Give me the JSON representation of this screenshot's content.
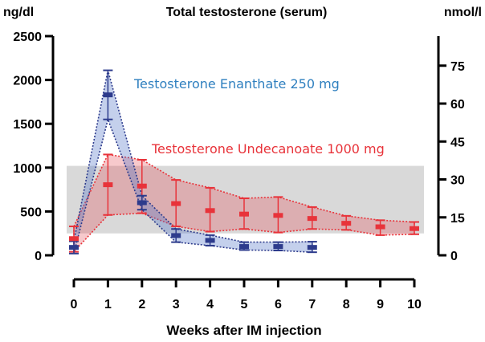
{
  "chart_data": {
    "type": "line",
    "title": "Total testosterone (serum)",
    "xlabel": "Weeks after IM injection",
    "ylabel_left": "ng/dl",
    "ylabel_right": "nmol/l",
    "xlim": [
      0,
      10
    ],
    "ylim": [
      0,
      2500
    ],
    "x_ticks": [
      0,
      1,
      2,
      3,
      4,
      5,
      6,
      7,
      8,
      9,
      10
    ],
    "y_ticks_left": [
      0,
      500,
      1000,
      1500,
      2000,
      2500
    ],
    "y_ticks_right": [
      0,
      15,
      30,
      45,
      60,
      75
    ],
    "nmol_per_ngdl": 0.03467,
    "reference_range": {
      "low": 250,
      "high": 1020,
      "color": "#d9d9d9"
    },
    "series": [
      {
        "name": "Testosterone Undecanoate 1000 mg",
        "color": "#e8333a",
        "fill": "rgba(230, 75, 85, 0.30)",
        "x": [
          0,
          1,
          2,
          3,
          4,
          5,
          6,
          7,
          8,
          9,
          10
        ],
        "y": [
          190,
          805,
          790,
          590,
          510,
          470,
          455,
          420,
          365,
          325,
          305
        ],
        "lower": [
          40,
          460,
          480,
          330,
          270,
          300,
          260,
          300,
          290,
          230,
          240
        ],
        "upper": [
          330,
          1150,
          1090,
          860,
          770,
          650,
          665,
          550,
          450,
          400,
          380
        ]
      },
      {
        "name": "Testosterone Enanthate 250 mg",
        "color": "#2d3b8c",
        "fill": "rgba(85, 120, 200, 0.35)",
        "x": [
          0,
          1,
          2,
          3,
          4,
          5,
          6,
          7
        ],
        "y": [
          90,
          1830,
          600,
          225,
          170,
          100,
          100,
          90
        ],
        "lower": [
          20,
          1550,
          520,
          150,
          110,
          60,
          55,
          35
        ],
        "upper": [
          160,
          2110,
          680,
          300,
          230,
          150,
          150,
          155
        ]
      }
    ],
    "annotations": [
      {
        "text": "Testosterone Enanthate 250 mg",
        "color": "#2e7fbf"
      },
      {
        "text": "Testosterone Undecanoate 1000 mg",
        "color": "#e8333a"
      }
    ]
  }
}
